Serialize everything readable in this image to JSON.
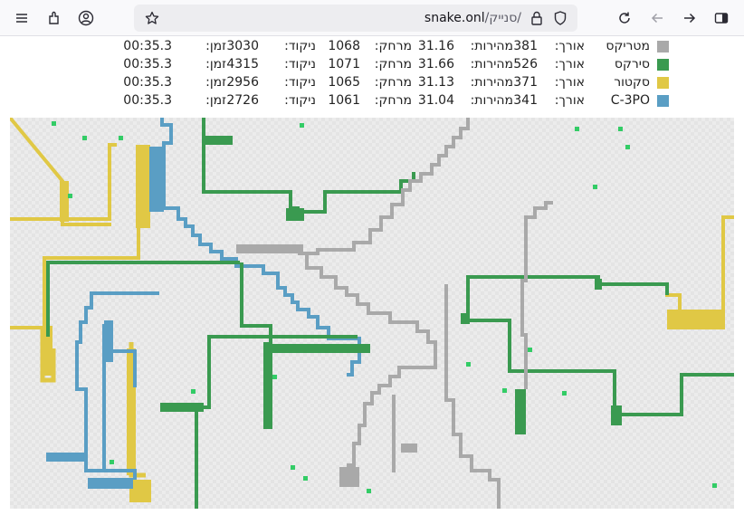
{
  "browser": {
    "address_host": "snake.onl",
    "address_path": "/סנייק/",
    "icons": [
      "menu-icon",
      "extensions-icon",
      "account-icon",
      "bookmark-star-icon",
      "lock-icon",
      "shield-icon",
      "reload-icon",
      "back-arrow-icon",
      "forward-arrow-icon",
      "sidebar-icon"
    ]
  },
  "labels": {
    "length": "אורך:",
    "speed": "מהירות:",
    "distance": "מרחק:",
    "score": "ניקוד:",
    "time": "זמן:"
  },
  "players": [
    {
      "name": "מטריקס",
      "color": "#a9a9a9",
      "length": "381",
      "speed": "31.16",
      "distance": "1068",
      "score": "3030",
      "time": "00:35.3"
    },
    {
      "name": "סירקס",
      "color": "#3a9a50",
      "length": "526",
      "speed": "31.66",
      "distance": "1071",
      "score": "4315",
      "time": "00:35.3"
    },
    {
      "name": "סקטור",
      "color": "#e0c845",
      "length": "371",
      "speed": "31.13",
      "distance": "1065",
      "score": "2956",
      "time": "00:35.3"
    },
    {
      "name": "C-3PO",
      "color": "#5a9ec4",
      "length": "341",
      "speed": "31.04",
      "distance": "1061",
      "score": "2726",
      "time": "00:35.3"
    }
  ],
  "food_color": "#33cc66"
}
